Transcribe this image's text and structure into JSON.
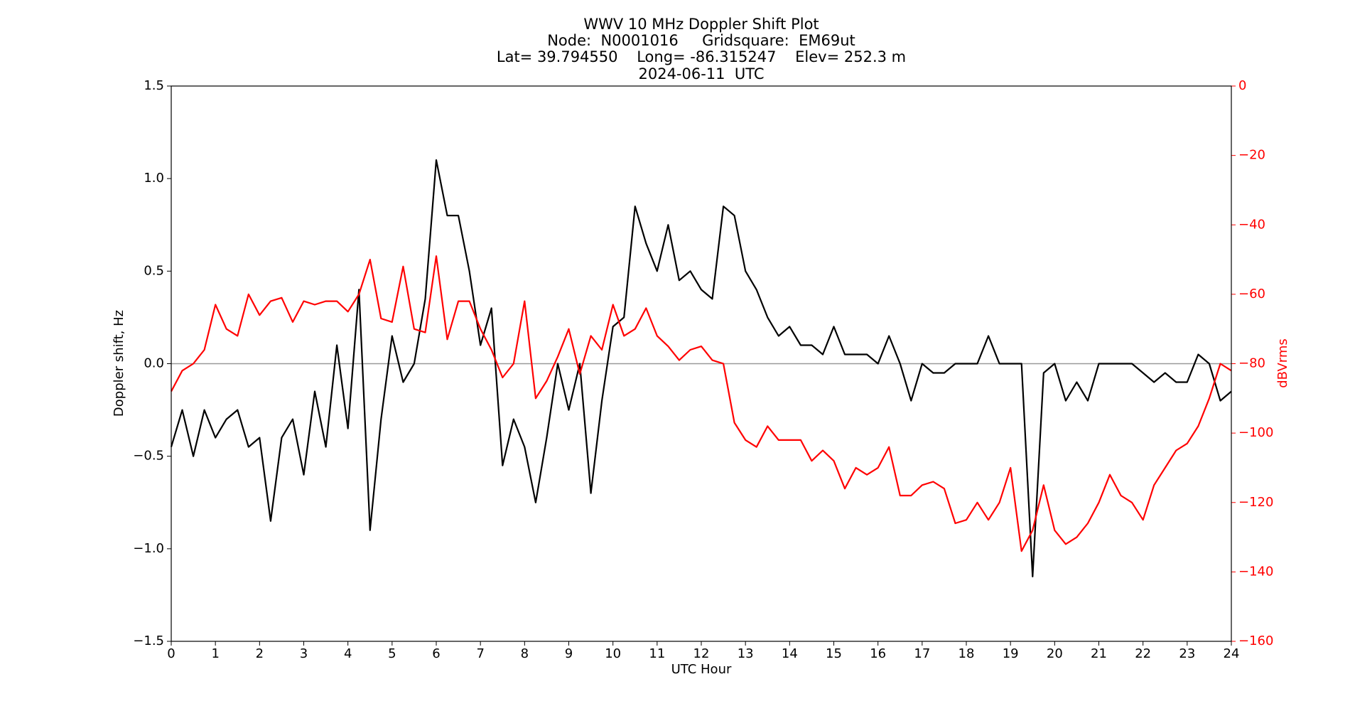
{
  "chart_data": {
    "type": "line",
    "title": [
      "WWV 10 MHz Doppler Shift Plot",
      "Node:  N0001016     Gridsquare:  EM69ut",
      "Lat= 39.794550    Long= -86.315247    Elev= 252.3 m",
      "2024-06-11  UTC"
    ],
    "xlabel": "UTC Hour",
    "ylabel": "Doppler shift, Hz",
    "y2label": "dBVrms",
    "xlim": [
      0,
      24
    ],
    "xticks": [
      0,
      1,
      2,
      3,
      4,
      5,
      6,
      7,
      8,
      9,
      10,
      11,
      12,
      13,
      14,
      15,
      16,
      17,
      18,
      19,
      20,
      21,
      22,
      23,
      24
    ],
    "ylim": [
      -1.5,
      1.5
    ],
    "yticks": [
      {
        "value": -1.5,
        "label": "−1.5"
      },
      {
        "value": -1.0,
        "label": "−1.0"
      },
      {
        "value": -0.5,
        "label": "−0.5"
      },
      {
        "value": 0,
        "label": "0.0"
      },
      0.5,
      {
        "value": 1.0,
        "label": "1.0"
      },
      1.5
    ],
    "y2lim": [
      -160,
      0
    ],
    "y2ticks": [
      {
        "value": -160,
        "label": "−160"
      },
      {
        "value": -140,
        "label": "−140"
      },
      {
        "value": -120,
        "label": "−120"
      },
      {
        "value": -100,
        "label": "−100"
      },
      {
        "value": -80,
        "label": "−80"
      },
      {
        "value": -60,
        "label": "−60"
      },
      {
        "value": -40,
        "label": "−40"
      },
      {
        "value": -20,
        "label": "−20"
      },
      0
    ],
    "y2color": "#ff0000",
    "hline": 0,
    "x": [
      0,
      0.25,
      0.5,
      0.75,
      1,
      1.25,
      1.5,
      1.75,
      2,
      2.25,
      2.5,
      2.75,
      3,
      3.25,
      3.5,
      3.75,
      4,
      4.25,
      4.5,
      4.75,
      5,
      5.25,
      5.5,
      5.75,
      6,
      6.25,
      6.5,
      6.75,
      7,
      7.25,
      7.5,
      7.75,
      8,
      8.25,
      8.5,
      8.75,
      9,
      9.25,
      9.5,
      9.75,
      10,
      10.25,
      10.5,
      10.75,
      11,
      11.25,
      11.5,
      11.75,
      12,
      12.25,
      12.5,
      12.75,
      13,
      13.25,
      13.5,
      13.75,
      14,
      14.25,
      14.5,
      14.75,
      15,
      15.25,
      15.5,
      15.75,
      16,
      16.25,
      16.5,
      16.75,
      17,
      17.25,
      17.5,
      17.75,
      18,
      18.25,
      18.5,
      18.75,
      19,
      19.25,
      19.5,
      19.75,
      20,
      20.25,
      20.5,
      20.75,
      21,
      21.25,
      21.5,
      21.75,
      22,
      22.25,
      22.5,
      22.75,
      23,
      23.25,
      23.5,
      23.75,
      24
    ],
    "series": [
      {
        "color": "#000000",
        "values": [
          -0.45,
          -0.25,
          -0.5,
          -0.25,
          -0.4,
          -0.3,
          -0.25,
          -0.45,
          -0.4,
          -0.85,
          -0.4,
          -0.3,
          -0.6,
          -0.15,
          -0.45,
          0.1,
          -0.35,
          0.4,
          -0.9,
          -0.3,
          0.15,
          -0.1,
          0.0,
          0.35,
          1.1,
          0.8,
          0.8,
          0.5,
          0.1,
          0.3,
          -0.55,
          -0.3,
          -0.45,
          -0.75,
          -0.4,
          0.0,
          -0.25,
          0.0,
          -0.7,
          -0.2,
          0.2,
          0.25,
          0.85,
          0.65,
          0.5,
          0.75,
          0.45,
          0.5,
          0.4,
          0.35,
          0.85,
          0.8,
          0.5,
          0.4,
          0.25,
          0.15,
          0.2,
          0.1,
          0.1,
          0.05,
          0.2,
          0.05,
          0.05,
          0.05,
          0.0,
          0.15,
          0.0,
          -0.2,
          0.0,
          -0.05,
          -0.05,
          0.0,
          0.0,
          0.0,
          0.15,
          0.0,
          0.0,
          0.0,
          -1.15,
          -0.05,
          0.0,
          -0.2,
          -0.1,
          -0.2,
          0.0,
          0.0,
          0.0,
          0.0,
          -0.05,
          -0.1,
          -0.05,
          -0.1,
          -0.1,
          0.05,
          0.0,
          -0.2,
          -0.15
        ]
      },
      {
        "color": "#ff0000",
        "axis": "y2",
        "values": [
          -88,
          -82,
          -80,
          -76,
          -63,
          -70,
          -72,
          -60,
          -66,
          -62,
          -61,
          -68,
          -62,
          -63,
          -62,
          -62,
          -65,
          -60,
          -50,
          -67,
          -68,
          -52,
          -70,
          -71,
          -49,
          -73,
          -62,
          -62,
          -70,
          -76,
          -84,
          -80,
          -62,
          -90,
          -85,
          -78,
          -70,
          -83,
          -72,
          -76,
          -63,
          -72,
          -70,
          -64,
          -72,
          -75,
          -79,
          -76,
          -75,
          -79,
          -80,
          -97,
          -102,
          -104,
          -98,
          -102,
          -102,
          -102,
          -108,
          -105,
          -108,
          -116,
          -110,
          -112,
          -110,
          -104,
          -118,
          -118,
          -115,
          -114,
          -116,
          -126,
          -125,
          -120,
          -125,
          -120,
          -110,
          -134,
          -128,
          -115,
          -128,
          -132,
          -130,
          -126,
          -120,
          -112,
          -118,
          -120,
          -125,
          -115,
          -110,
          -105,
          -103,
          -98,
          -90,
          -80,
          -82
        ]
      }
    ]
  }
}
